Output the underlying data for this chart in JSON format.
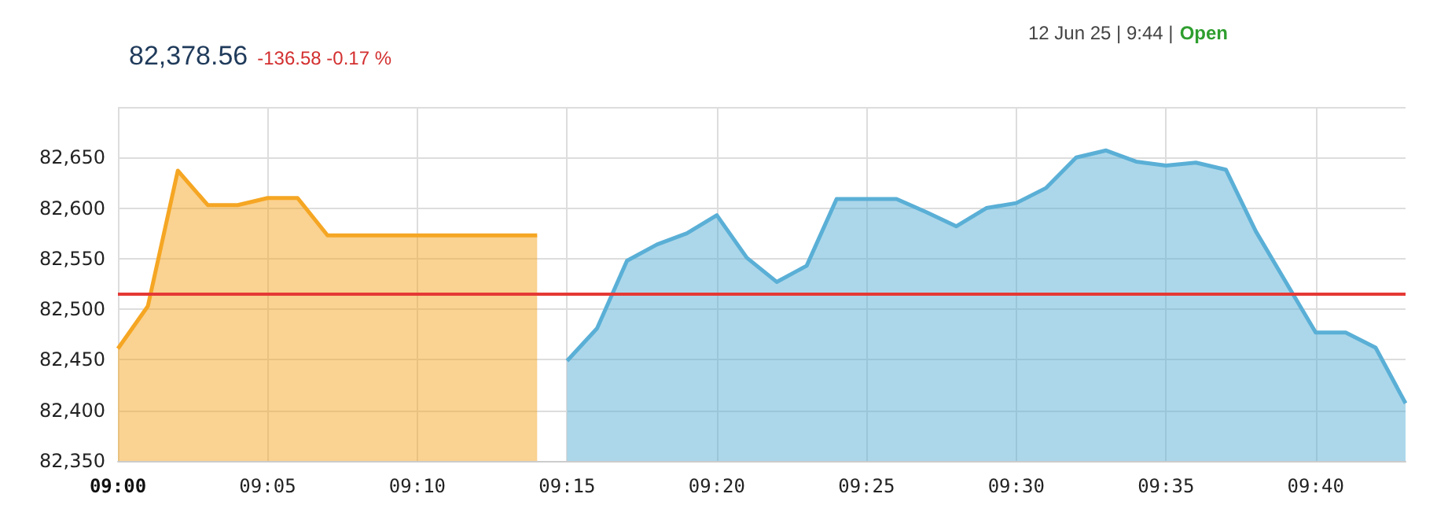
{
  "chart_data": {
    "type": "area",
    "title": "82,378.56",
    "annotations": [
      "-136.58 -0.17 %",
      "12 Jun 25 | 9:44 |",
      "Open"
    ],
    "categories": [
      "09:00",
      null,
      null,
      null,
      null,
      "09:05",
      null,
      null,
      null,
      null,
      "09:10",
      null,
      null,
      null,
      null,
      "09:15",
      null,
      null,
      null,
      null,
      "09:20",
      null,
      null,
      null,
      null,
      "09:25",
      null,
      null,
      null,
      null,
      "09:30",
      null,
      null,
      null,
      null,
      "09:35",
      null,
      null,
      null,
      null,
      "09:40",
      null,
      null,
      null
    ],
    "series": [
      {
        "color": "#f5a623",
        "values": [
          82461,
          82503,
          82637,
          82603,
          82603,
          82610,
          82610,
          82573,
          82573,
          82573,
          82573,
          82573,
          82573,
          82573,
          82573,
          null,
          null,
          null,
          null,
          null,
          null,
          null,
          null,
          null,
          null,
          null,
          null,
          null,
          null,
          null,
          null,
          null,
          null,
          null,
          null,
          null,
          null,
          null,
          null,
          null,
          null,
          null,
          null,
          null
        ]
      },
      {
        "color": "#5aafd6",
        "values": [
          null,
          null,
          null,
          null,
          null,
          null,
          null,
          null,
          null,
          null,
          null,
          null,
          null,
          null,
          null,
          82449,
          82481,
          82548,
          82564,
          82575,
          82593,
          82551,
          82527,
          82543,
          82609,
          82609,
          82609,
          82596,
          82582,
          82600,
          82605,
          82620,
          82650,
          82657,
          82646,
          82642,
          82645,
          82638,
          82577,
          82527,
          82477,
          82477,
          82462,
          82407
        ]
      }
    ],
    "ylim": [
      82350,
      82700
    ],
    "yticks": [
      {
        "value": 82350,
        "label": "82,350"
      },
      {
        "value": 82400,
        "label": "82,400"
      },
      {
        "value": 82450,
        "label": "82,450"
      },
      {
        "value": 82500,
        "label": "82,500"
      },
      {
        "value": 82550,
        "label": "82,550"
      },
      {
        "value": 82600,
        "label": "82,600"
      },
      {
        "value": 82650,
        "label": "82,650"
      },
      {
        "value": 82700,
        "label": null
      }
    ],
    "ref_lines": [
      {
        "axis": "y",
        "value": 82515,
        "color": "#e53935"
      }
    ],
    "grid": true,
    "marker": "none",
    "line_style": "solid"
  }
}
